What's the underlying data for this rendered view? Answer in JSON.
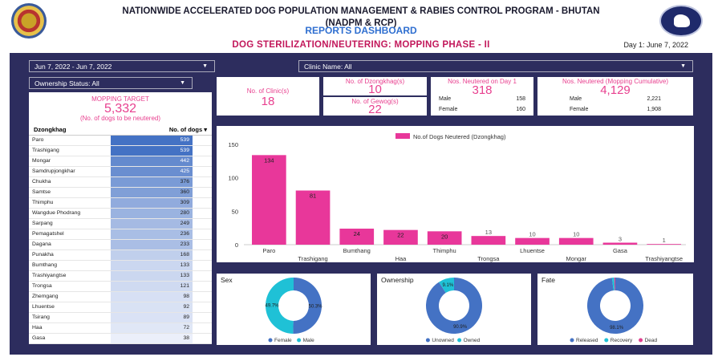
{
  "header": {
    "title_line1": "NATIONWIDE ACCELERATED DOG POPULATION MANAGEMENT & RABIES CONTROL PROGRAM - BHUTAN",
    "title_line2": "(NADPM & RCP)",
    "subtitle": "REPORTS DASHBOARD",
    "section_title": "DOG STERILIZATION/NEUTERING: MOPPING PHASE - II",
    "day_label": "Day 1: June 7, 2022"
  },
  "filters": {
    "date_range": "Jun 7, 2022 - Jun 7, 2022",
    "clinic": "Clinic Name: All",
    "ownership": "Ownership Status: All"
  },
  "target": {
    "label": "MOPPING TARGET",
    "value": "5,332",
    "note": "(No. of dogs to be neutered)"
  },
  "kpis": {
    "clinics": {
      "label": "No. of Clinic(s)",
      "value": "18"
    },
    "dzongkhags": {
      "label": "No. of Dzongkhag(s)",
      "value": "10"
    },
    "gewogs": {
      "label": "No. of Gewog(s)",
      "value": "22"
    },
    "day1": {
      "label": "Nos. Neutered on Day 1",
      "value": "318",
      "male_label": "Male",
      "male": "158",
      "female_label": "Female",
      "female": "160"
    },
    "cumulative": {
      "label": "Nos. Neutered (Mopping Cumulative)",
      "value": "4,129",
      "male_label": "Male",
      "male": "2,221",
      "female_label": "Female",
      "female": "1,908"
    }
  },
  "table": {
    "col1": "Dzongkhag",
    "col2": "No. of dogs",
    "sort_icon": "▾",
    "rows": [
      {
        "name": "Paro",
        "value": "539"
      },
      {
        "name": "Trashigang",
        "value": "539"
      },
      {
        "name": "Mongar",
        "value": "442"
      },
      {
        "name": "Samdrupjongkhar",
        "value": "425"
      },
      {
        "name": "Chukha",
        "value": "376"
      },
      {
        "name": "Samtse",
        "value": "360"
      },
      {
        "name": "Thimphu",
        "value": "309"
      },
      {
        "name": "Wangdue Phodrang",
        "value": "280"
      },
      {
        "name": "Sarpang",
        "value": "249"
      },
      {
        "name": "Pemagatshel",
        "value": "236"
      },
      {
        "name": "Dagana",
        "value": "233"
      },
      {
        "name": "Punakha",
        "value": "168"
      },
      {
        "name": "Bumthang",
        "value": "133"
      },
      {
        "name": "Trashiyangtse",
        "value": "133"
      },
      {
        "name": "Trongsa",
        "value": "121"
      },
      {
        "name": "Zhemgang",
        "value": "98"
      },
      {
        "name": "Lhuentse",
        "value": "92"
      },
      {
        "name": "Tsirang",
        "value": "89"
      },
      {
        "name": "Haa",
        "value": "72"
      },
      {
        "name": "Gasa",
        "value": "38"
      }
    ]
  },
  "chart_data": [
    {
      "type": "bar",
      "legend": "No.of Dogs Neutered (Dzongkhag)",
      "categories": [
        "Paro",
        "Trashigang",
        "Bumthang",
        "Haa",
        "Thimphu",
        "Trongsa",
        "Lhuentse",
        "Mongar",
        "Gasa",
        "Trashiyangtse"
      ],
      "values": [
        134,
        81,
        24,
        22,
        20,
        13,
        10,
        10,
        3,
        1
      ],
      "ylim": [
        0,
        150
      ],
      "yticks": [
        "0",
        "50",
        "100",
        "150"
      ],
      "color": "#e8379a"
    },
    {
      "type": "pie",
      "title": "Sex",
      "labels": [
        "Female",
        "Male"
      ],
      "values": [
        50.3,
        49.7
      ],
      "value_labels": [
        "50.3%",
        "49.7%"
      ],
      "colors": [
        "#4472c4",
        "#1fc1d6"
      ]
    },
    {
      "type": "pie",
      "title": "Ownership",
      "labels": [
        "Unowned",
        "Owned"
      ],
      "values": [
        90.9,
        9.1
      ],
      "value_labels": [
        "90.9%",
        "9.1%"
      ],
      "colors": [
        "#4472c4",
        "#1fc1d6"
      ]
    },
    {
      "type": "pie",
      "title": "Fate",
      "labels": [
        "Released",
        "Recovery",
        "Dead"
      ],
      "values": [
        98.1,
        1.3,
        0.6
      ],
      "value_labels": [
        "98.1%",
        "",
        ""
      ],
      "colors": [
        "#4472c4",
        "#1fc1d6",
        "#e0408f"
      ]
    }
  ]
}
